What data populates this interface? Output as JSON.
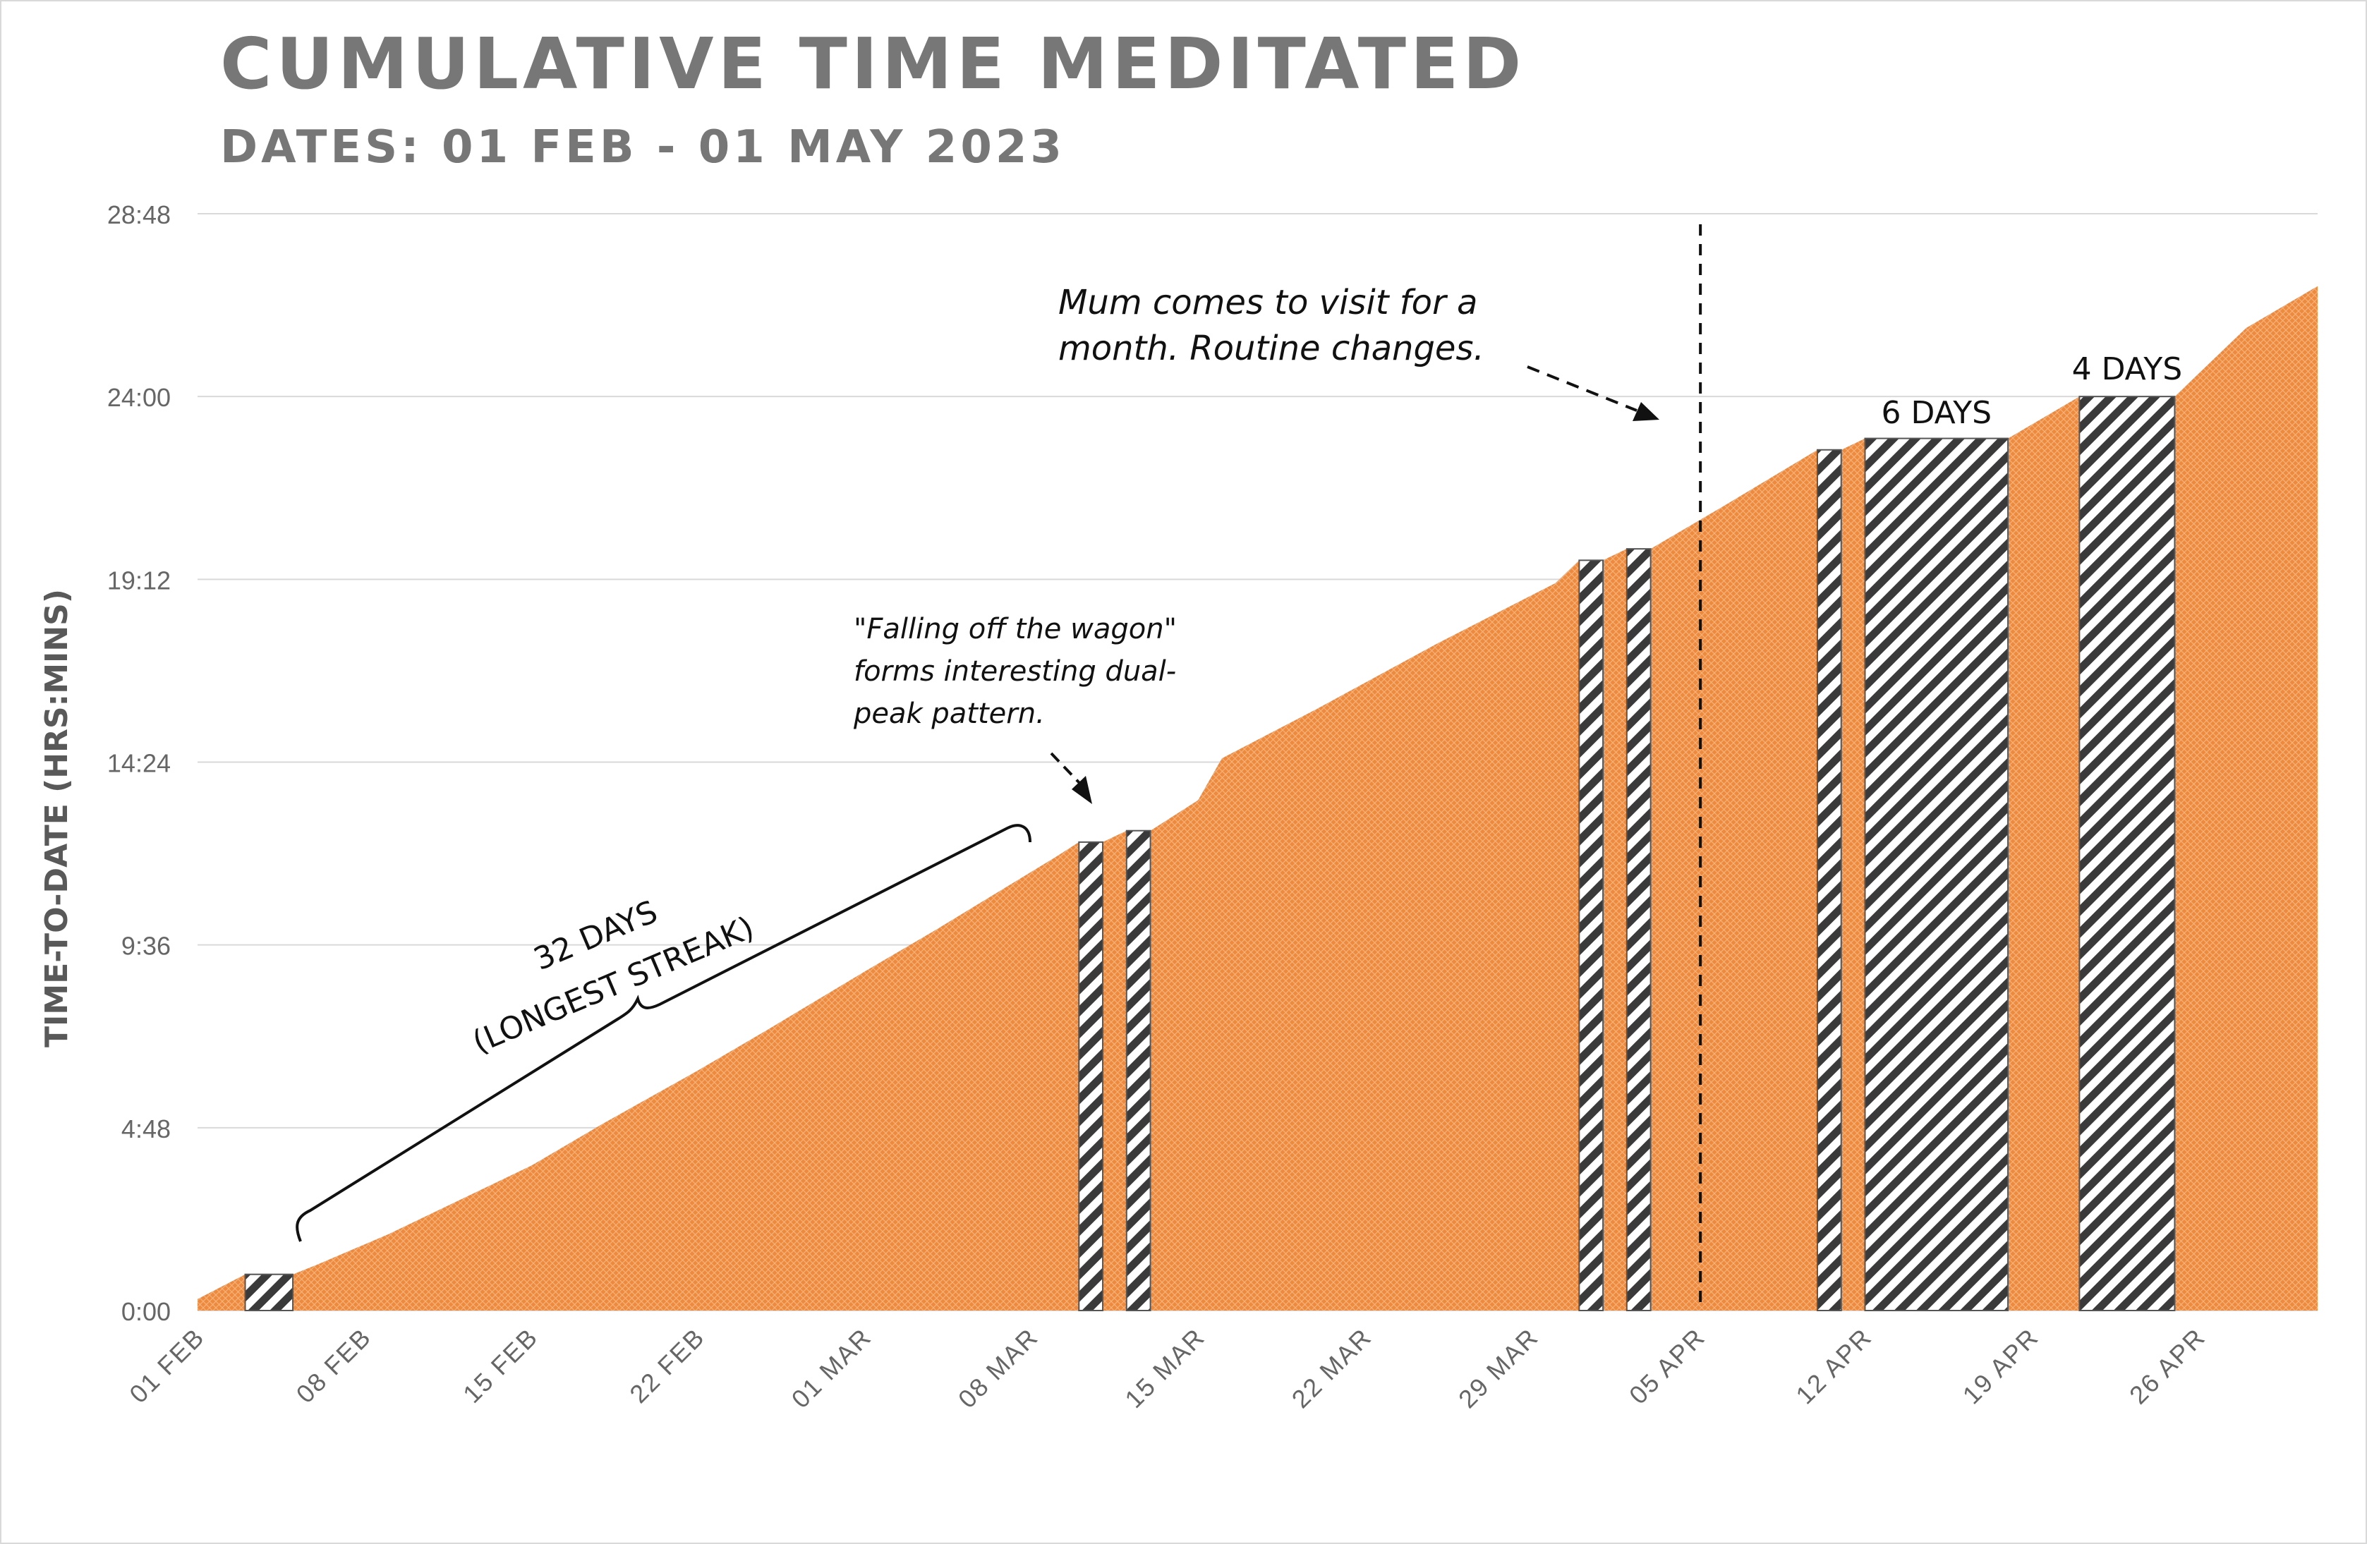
{
  "chart_data": {
    "type": "area",
    "title": "CUMULATIVE TIME MEDITATED",
    "subtitle": "DATES: 01 FEB - 01 MAY 2023",
    "ylabel": "TIME-TO-DATE (HRS:MINS)",
    "xlabel": "",
    "x_range": [
      "2023-02-01",
      "2023-05-01"
    ],
    "x_ticks": [
      {
        "date": "2023-02-01",
        "label": "01 FEB"
      },
      {
        "date": "2023-02-08",
        "label": "08 FEB"
      },
      {
        "date": "2023-02-15",
        "label": "15 FEB"
      },
      {
        "date": "2023-02-22",
        "label": "22 FEB"
      },
      {
        "date": "2023-03-01",
        "label": "01 MAR"
      },
      {
        "date": "2023-03-08",
        "label": "08 MAR"
      },
      {
        "date": "2023-03-15",
        "label": "15 MAR"
      },
      {
        "date": "2023-03-22",
        "label": "22 MAR"
      },
      {
        "date": "2023-03-29",
        "label": "29 MAR"
      },
      {
        "date": "2023-04-05",
        "label": "05 APR"
      },
      {
        "date": "2023-04-12",
        "label": "12 APR"
      },
      {
        "date": "2023-04-19",
        "label": "19 APR"
      },
      {
        "date": "2023-04-26",
        "label": "26 APR"
      }
    ],
    "y_ticks": [
      "0:00",
      "4:48",
      "9:36",
      "14:24",
      "19:12",
      "24:00",
      "28:48"
    ],
    "ylim_hours": [
      0,
      28.8
    ],
    "grid": true,
    "series": [
      {
        "values_hours": [
          {
            "date": "2023-02-01",
            "value": 0.3
          },
          {
            "date": "2023-02-03",
            "value": 0.95
          },
          {
            "date": "2023-02-05",
            "value": 0.95
          },
          {
            "date": "2023-02-06",
            "value": 1.2
          },
          {
            "date": "2023-02-09",
            "value": 2.0
          },
          {
            "date": "2023-02-12",
            "value": 2.9
          },
          {
            "date": "2023-02-15",
            "value": 3.8
          },
          {
            "date": "2023-02-18",
            "value": 4.9
          },
          {
            "date": "2023-02-22",
            "value": 6.3
          },
          {
            "date": "2023-02-25",
            "value": 7.4
          },
          {
            "date": "2023-03-01",
            "value": 8.9
          },
          {
            "date": "2023-03-04",
            "value": 10.0
          },
          {
            "date": "2023-03-09",
            "value": 11.9
          },
          {
            "date": "2023-03-10",
            "value": 12.3
          },
          {
            "date": "2023-03-11",
            "value": 12.3
          },
          {
            "date": "2023-03-12",
            "value": 12.6
          },
          {
            "date": "2023-03-13",
            "value": 12.6
          },
          {
            "date": "2023-03-15",
            "value": 13.4
          },
          {
            "date": "2023-03-16",
            "value": 14.5
          },
          {
            "date": "2023-03-20",
            "value": 15.8
          },
          {
            "date": "2023-03-25",
            "value": 17.5
          },
          {
            "date": "2023-03-30",
            "value": 19.1
          },
          {
            "date": "2023-03-31",
            "value": 19.7
          },
          {
            "date": "2023-04-01",
            "value": 19.7
          },
          {
            "date": "2023-04-02",
            "value": 20.0
          },
          {
            "date": "2023-04-03",
            "value": 20.0
          },
          {
            "date": "2023-04-06",
            "value": 21.1
          },
          {
            "date": "2023-04-10",
            "value": 22.6
          },
          {
            "date": "2023-04-11",
            "value": 22.6
          },
          {
            "date": "2023-04-12",
            "value": 22.9
          },
          {
            "date": "2023-04-18",
            "value": 22.9
          },
          {
            "date": "2023-04-21",
            "value": 24.0
          },
          {
            "date": "2023-04-25",
            "value": 24.0
          },
          {
            "date": "2023-04-28",
            "value": 25.8
          },
          {
            "date": "2023-05-01",
            "value": 26.9
          }
        ]
      }
    ],
    "missed_day_ranges": [
      {
        "start": "2023-02-03",
        "end": "2023-02-05"
      },
      {
        "start": "2023-03-10",
        "end": "2023-03-11"
      },
      {
        "start": "2023-03-12",
        "end": "2023-03-13"
      },
      {
        "start": "2023-03-31",
        "end": "2023-04-01"
      },
      {
        "start": "2023-04-02",
        "end": "2023-04-03"
      },
      {
        "start": "2023-04-10",
        "end": "2023-04-11"
      },
      {
        "start": "2023-04-12",
        "end": "2023-04-18"
      },
      {
        "start": "2023-04-21",
        "end": "2023-04-25"
      }
    ],
    "annotations": {
      "streak_line1": "32 DAYS",
      "streak_line2": "(LONGEST STREAK)",
      "wagon_line1": "\"Falling off the wagon\"",
      "wagon_line2": "forms interesting dual-",
      "wagon_line3": "peak pattern.",
      "mum_line1": "Mum comes to visit for a",
      "mum_line2": "month. Routine changes.",
      "gap6": "6 DAYS",
      "gap4": "4 DAYS",
      "mum_marker_date": "2023-04-05"
    },
    "colors": {
      "area": "#ee8a3d",
      "area_texture": "#f9c395",
      "hatch": "#3a3a3a",
      "grid": "#d9d9d9"
    }
  }
}
